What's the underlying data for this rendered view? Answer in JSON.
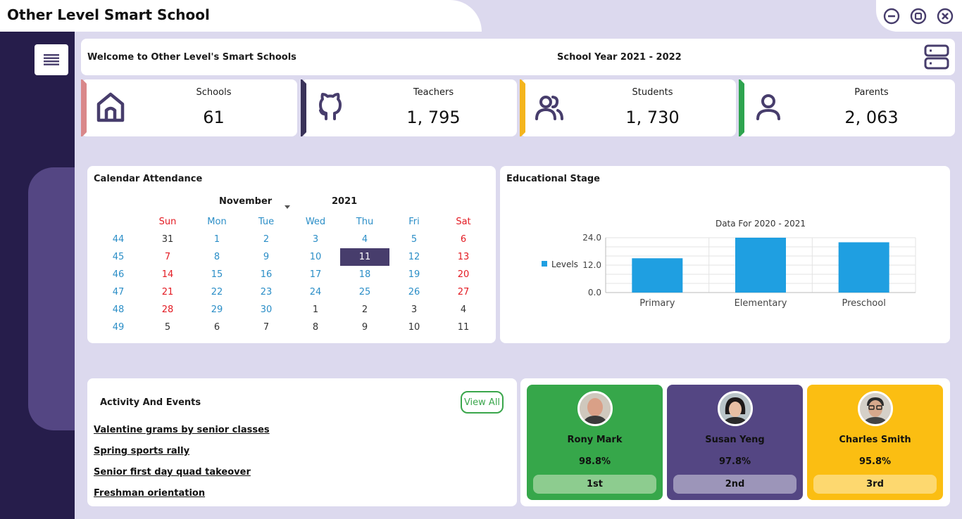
{
  "app": {
    "title": "Other Level Smart School"
  },
  "header": {
    "welcome": "Welcome to Other Level's Smart Schools",
    "school_year": "School Year 2021 - 2022"
  },
  "stats": [
    {
      "label": "Schools",
      "value": "61",
      "icon": "home-icon",
      "accent": "#d9888a"
    },
    {
      "label": "Teachers",
      "value": "1, 795",
      "icon": "github-icon",
      "accent": "#3a3359"
    },
    {
      "label": "Students",
      "value": "1, 730",
      "icon": "users-icon",
      "accent": "#f4b51d"
    },
    {
      "label": "Parents",
      "value": "2, 063",
      "icon": "user-icon",
      "accent": "#2ea44f"
    }
  ],
  "calendar": {
    "title": "Calendar Attendance",
    "month": "November",
    "year": "2021",
    "weekday_headers": [
      "Sun",
      "Mon",
      "Tue",
      "Wed",
      "Thu",
      "Fri",
      "Sat"
    ],
    "weeks": [
      {
        "num": "44",
        "days": [
          "31",
          "1",
          "2",
          "3",
          "4",
          "5",
          "6"
        ]
      },
      {
        "num": "45",
        "days": [
          "7",
          "8",
          "9",
          "10",
          "11",
          "12",
          "13"
        ]
      },
      {
        "num": "46",
        "days": [
          "14",
          "15",
          "16",
          "17",
          "18",
          "19",
          "20"
        ]
      },
      {
        "num": "47",
        "days": [
          "21",
          "22",
          "23",
          "24",
          "25",
          "26",
          "27"
        ]
      },
      {
        "num": "48",
        "days": [
          "28",
          "29",
          "30",
          "1",
          "2",
          "3",
          "4"
        ]
      },
      {
        "num": "49",
        "days": [
          "5",
          "6",
          "7",
          "8",
          "9",
          "10",
          "11"
        ]
      }
    ],
    "selected_day": "11"
  },
  "chart": {
    "title": "Educational Stage"
  },
  "chart_data": {
    "type": "bar",
    "title": "Data For 2020 - 2021",
    "categories": [
      "Primary",
      "Elementary",
      "Preschool"
    ],
    "series": [
      {
        "name": "Levels",
        "values": [
          15,
          24,
          22
        ],
        "color": "#1f9fe1"
      }
    ],
    "ylim": [
      0,
      24
    ],
    "yticks": [
      "0.0",
      "12.0",
      "24.0"
    ],
    "xlabel": "",
    "ylabel": "",
    "legend": "left",
    "grid": true
  },
  "activity": {
    "title": "Activity And Events",
    "view_all": "View All",
    "items": [
      "Valentine grams by senior classes",
      "Spring sports rally",
      "Senior first day quad takeover",
      "Freshman orientation"
    ]
  },
  "leaders": [
    {
      "name": "Rony Mark",
      "score": "98.8%",
      "rank": "1st",
      "color": "#36a74a",
      "pill": "#8dcc8f"
    },
    {
      "name": "Susan Yeng",
      "score": "97.8%",
      "rank": "2nd",
      "color": "#544683",
      "pill": "#9c95b9"
    },
    {
      "name": "Charles Smith",
      "score": "95.8%",
      "rank": "3rd",
      "color": "#fbbe12",
      "pill": "#fdd86f"
    }
  ]
}
